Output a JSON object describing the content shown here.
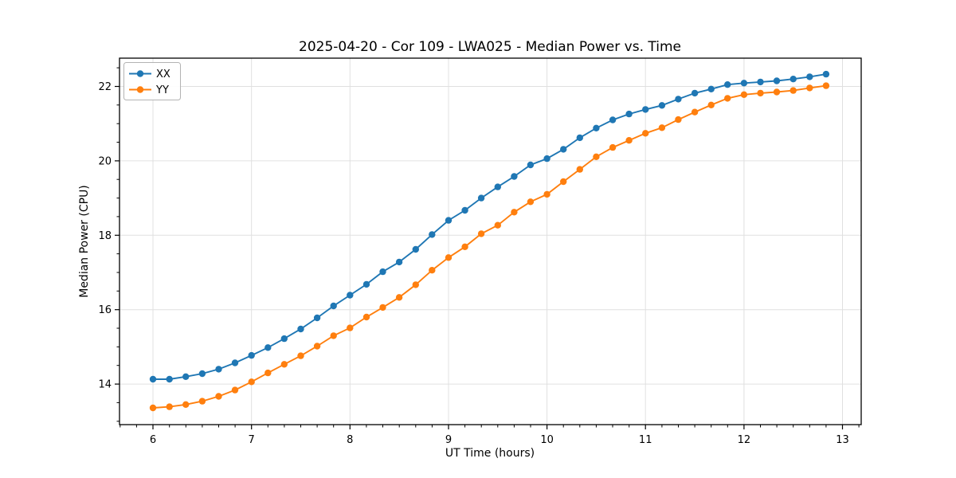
{
  "chart_data": {
    "type": "line",
    "title": "2025-04-20 - Cor 109 - LWA025 - Median Power vs. Time",
    "xlabel": "UT Time (hours)",
    "ylabel": "Median Power (CPU)",
    "xlim": [
      5.66,
      13.19
    ],
    "ylim": [
      12.91,
      22.76
    ],
    "x_ticks": [
      6,
      7,
      8,
      9,
      10,
      11,
      12,
      13
    ],
    "y_ticks": [
      14,
      16,
      18,
      20,
      22
    ],
    "x_minor_step": 0.16667,
    "y_minor_step": 0.5,
    "grid": "major-only",
    "legend_position": "upper-left",
    "x": [
      6.0,
      6.167,
      6.333,
      6.5,
      6.667,
      6.833,
      7.0,
      7.167,
      7.333,
      7.5,
      7.667,
      7.833,
      8.0,
      8.167,
      8.333,
      8.5,
      8.667,
      8.833,
      9.0,
      9.167,
      9.333,
      9.5,
      9.667,
      9.833,
      10.0,
      10.167,
      10.333,
      10.5,
      10.667,
      10.833,
      11.0,
      11.167,
      11.333,
      11.5,
      11.667,
      11.833,
      12.0,
      12.167,
      12.333,
      12.5,
      12.667,
      12.833
    ],
    "series": [
      {
        "name": "XX",
        "color": "#1f77b4",
        "values": [
          14.13,
          14.13,
          14.2,
          14.28,
          14.4,
          14.57,
          14.77,
          14.98,
          15.22,
          15.48,
          15.78,
          16.1,
          16.39,
          16.68,
          17.02,
          17.28,
          17.62,
          18.02,
          18.4,
          18.67,
          19.0,
          19.3,
          19.58,
          19.89,
          20.06,
          20.31,
          20.62,
          20.88,
          21.1,
          21.26,
          21.38,
          21.49,
          21.66,
          21.82,
          21.93,
          22.05,
          22.09,
          22.12,
          22.15,
          22.2,
          22.26,
          22.33
        ]
      },
      {
        "name": "YY",
        "color": "#ff7f0e",
        "values": [
          13.36,
          13.39,
          13.45,
          13.54,
          13.67,
          13.84,
          14.06,
          14.3,
          14.53,
          14.76,
          15.02,
          15.3,
          15.51,
          15.8,
          16.06,
          16.33,
          16.67,
          17.06,
          17.4,
          17.69,
          18.04,
          18.27,
          18.62,
          18.9,
          19.1,
          19.44,
          19.77,
          20.11,
          20.36,
          20.55,
          20.74,
          20.89,
          21.11,
          21.31,
          21.5,
          21.68,
          21.78,
          21.82,
          21.85,
          21.89,
          21.96,
          22.02
        ]
      }
    ]
  }
}
